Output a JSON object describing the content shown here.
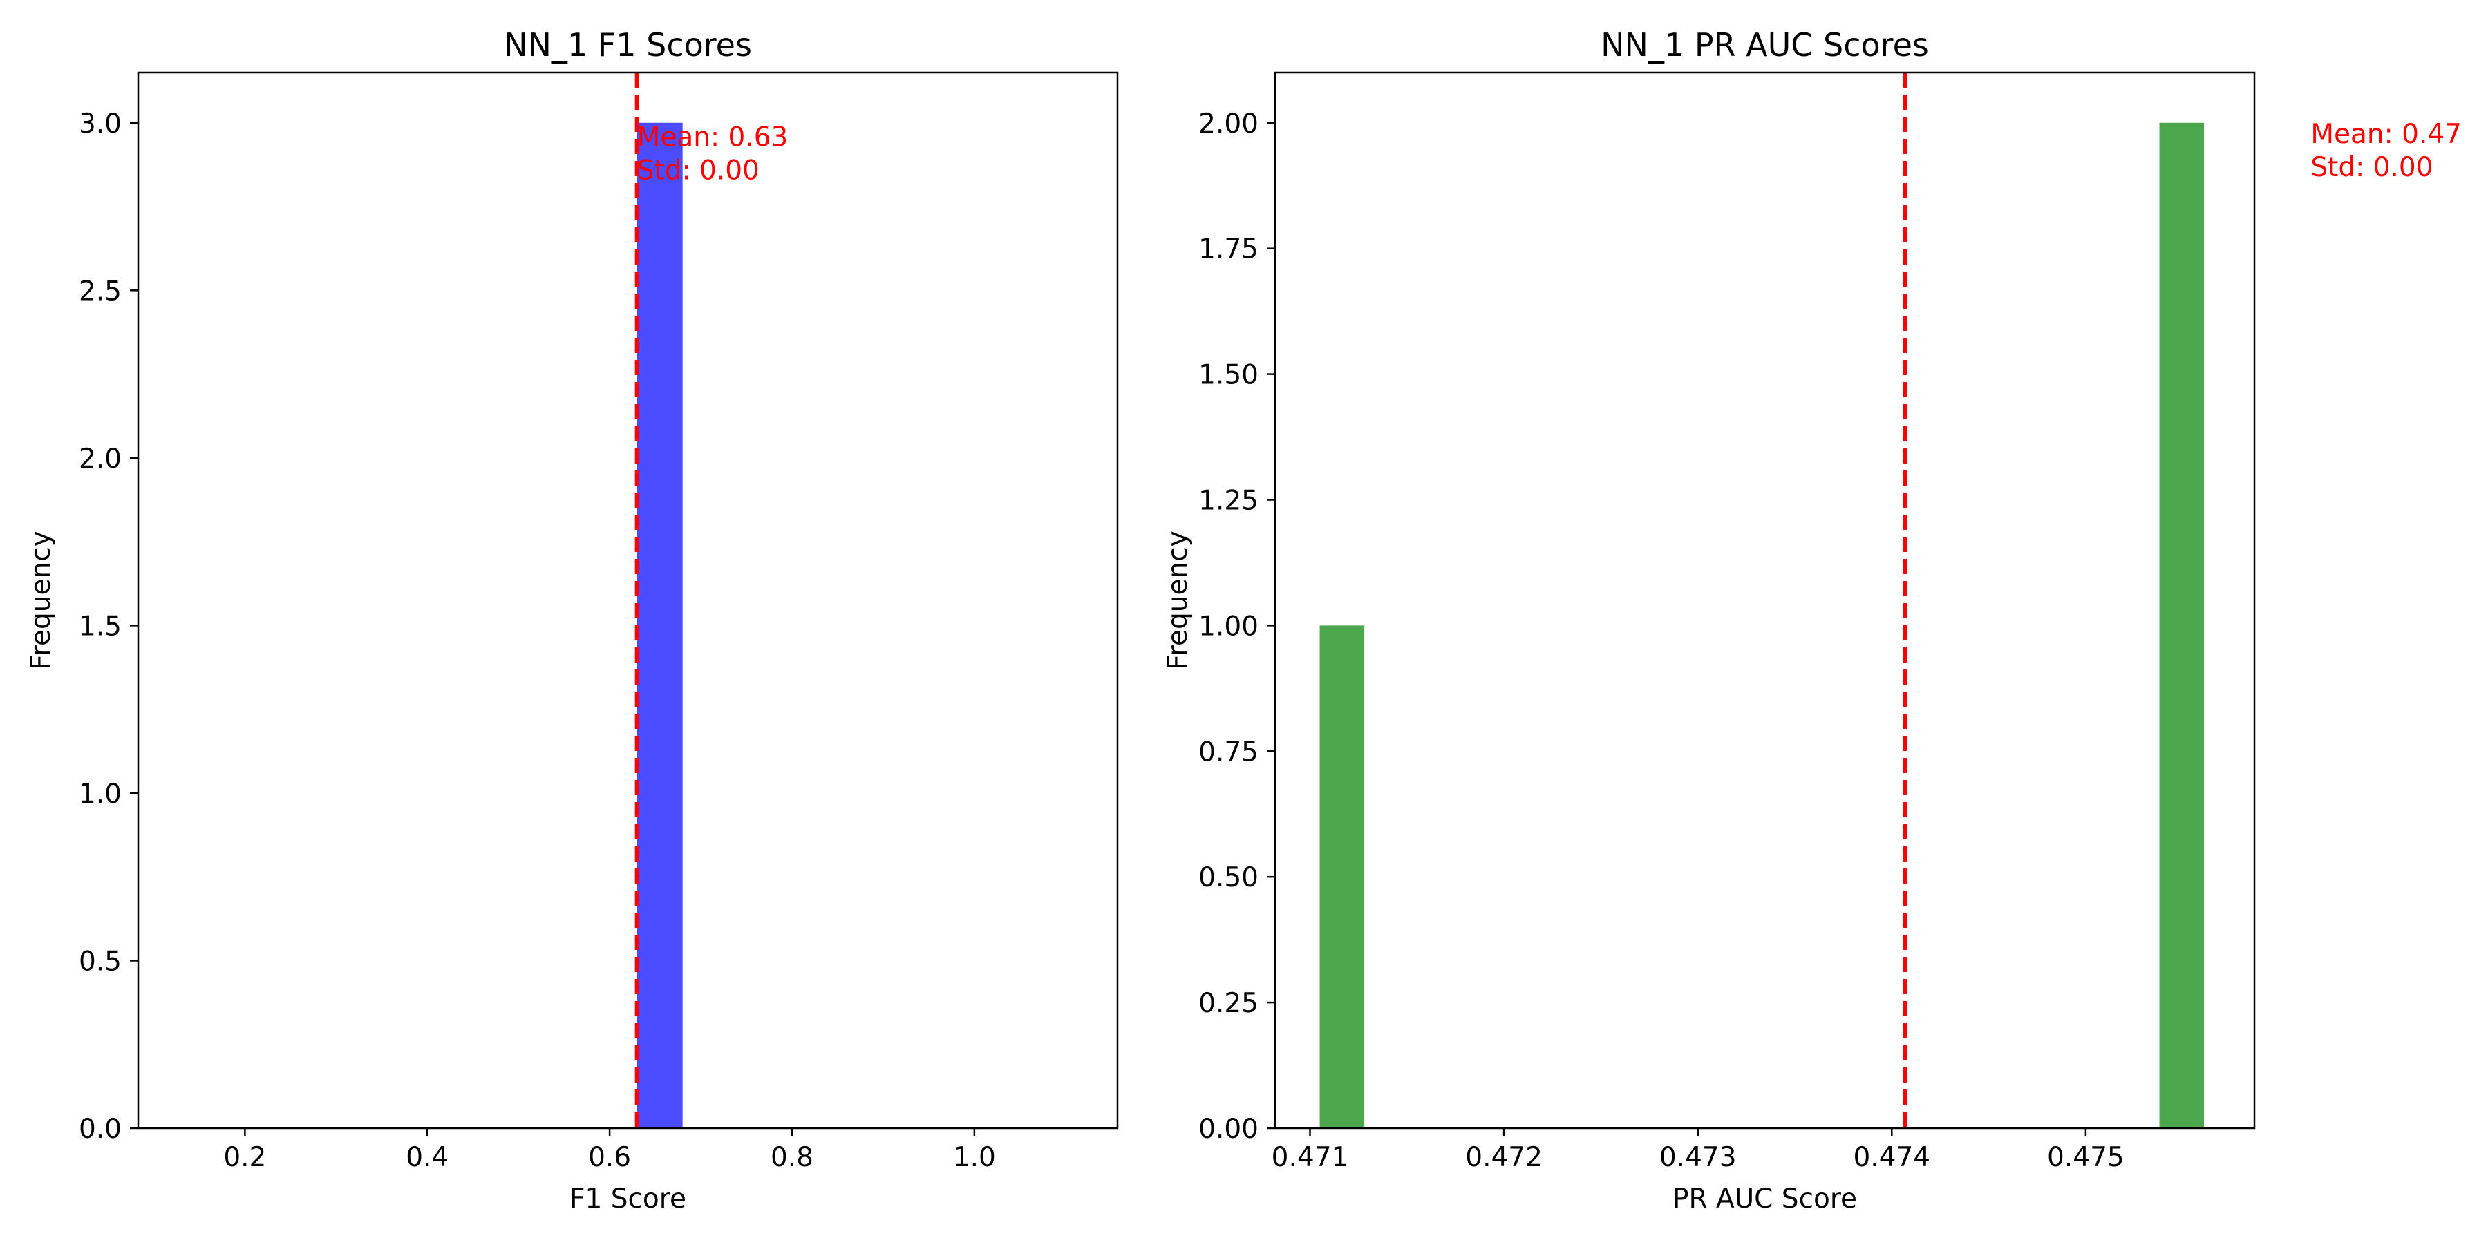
{
  "chart_data": [
    {
      "type": "histogram",
      "title": "NN_1 F1 Scores",
      "xlabel": "F1 Score",
      "ylabel": "Frequency",
      "xlim": [
        0.083,
        1.157
      ],
      "ylim": [
        0,
        3.15
      ],
      "xticks": [
        0.2,
        0.4,
        0.6,
        0.8,
        1.0
      ],
      "xtick_labels": [
        "0.2",
        "0.4",
        "0.6",
        "0.8",
        "1.0"
      ],
      "yticks": [
        0.0,
        0.5,
        1.0,
        1.5,
        2.0,
        2.5,
        3.0
      ],
      "ytick_labels": [
        "0.0",
        "0.5",
        "1.0",
        "1.5",
        "2.0",
        "2.5",
        "3.0"
      ],
      "bars": [
        {
          "x0": 0.63,
          "x1": 0.68,
          "value": 3
        }
      ],
      "bar_color": "#4b4bff",
      "mean_line": {
        "x": 0.63,
        "color": "#ff0000",
        "style": "dashed"
      },
      "annotation": {
        "lines": [
          "Mean: 0.63",
          "Std: 0.00"
        ],
        "x": 0.63,
        "y": 2.93,
        "color": "#ff0000"
      },
      "grid": false
    },
    {
      "type": "histogram",
      "title": "NN_1 PR AUC Scores",
      "xlabel": "PR AUC Score",
      "ylabel": "Frequency",
      "xlim": [
        0.47082,
        0.47587
      ],
      "ylim": [
        0,
        2.1
      ],
      "xticks": [
        0.471,
        0.472,
        0.473,
        0.474,
        0.475
      ],
      "xtick_labels": [
        "0.471",
        "0.472",
        "0.473",
        "0.474",
        "0.475"
      ],
      "yticks": [
        0.0,
        0.25,
        0.5,
        0.75,
        1.0,
        1.25,
        1.5,
        1.75,
        2.0
      ],
      "ytick_labels": [
        "0.00",
        "0.25",
        "0.50",
        "0.75",
        "1.00",
        "1.25",
        "1.50",
        "1.75",
        "2.00"
      ],
      "bars": [
        {
          "x0": 0.47105,
          "x1": 0.47128,
          "value": 1
        },
        {
          "x0": 0.47538,
          "x1": 0.47561,
          "value": 2
        }
      ],
      "bar_color": "#4ca64c",
      "mean_line": {
        "x": 0.47407,
        "color": "#ff0000",
        "style": "dashed"
      },
      "annotation": {
        "lines": [
          "Mean: 0.47",
          "Std: 0.00"
        ],
        "x": 0.47616,
        "y": 1.96,
        "color": "#ff0000"
      },
      "grid": false
    }
  ]
}
